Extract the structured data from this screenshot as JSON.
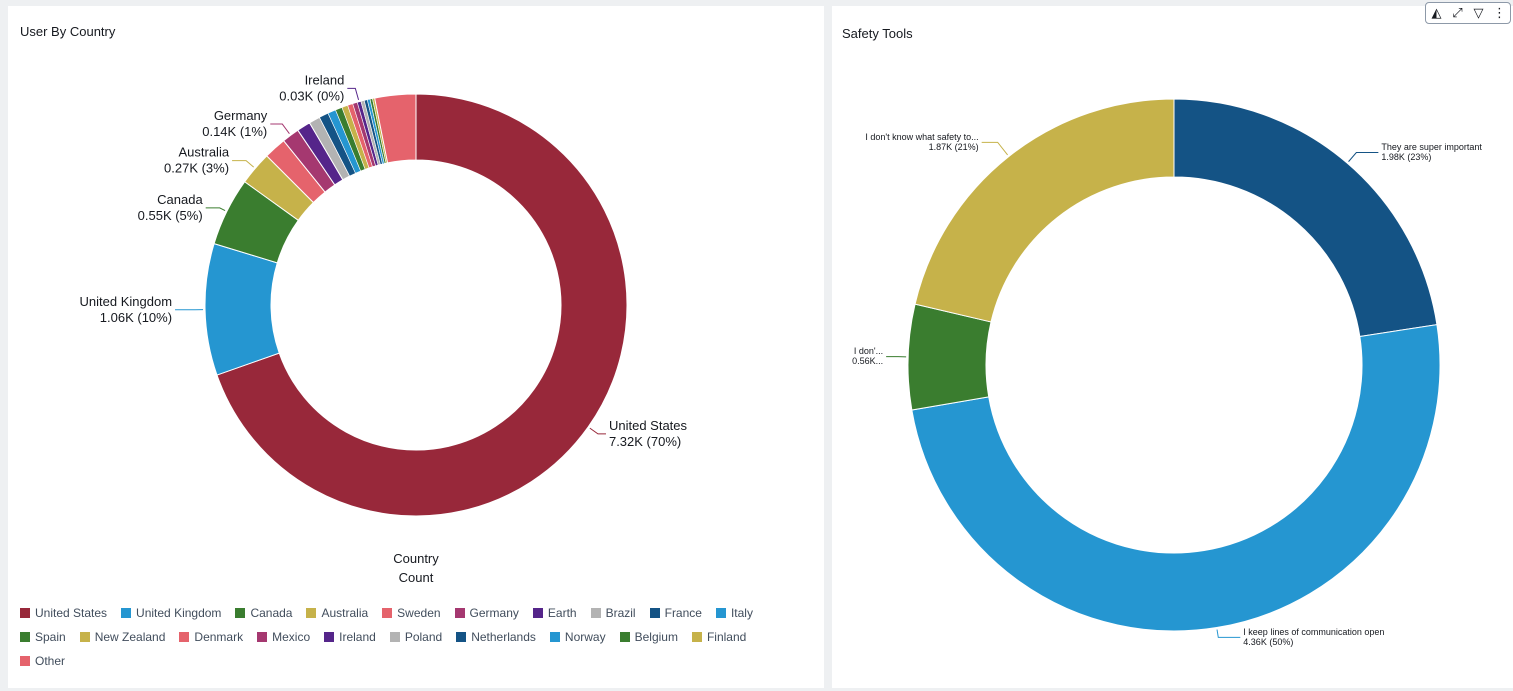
{
  "left_panel": {
    "title": "User By Country"
  },
  "right_panel": {
    "title": "Safety Tools",
    "toolbar": [
      {
        "icon": "chart-insights-icon",
        "glyph": "◭"
      },
      {
        "icon": "expand-icon",
        "glyph": "⤢"
      },
      {
        "icon": "filter-icon",
        "glyph": "▽"
      },
      {
        "icon": "more-options-icon",
        "glyph": "⋮"
      }
    ]
  },
  "chart_data": [
    {
      "type": "pie",
      "title": "User By Country",
      "donut": true,
      "field_labels": [
        "Country",
        "Count"
      ],
      "legend_position": "bottom",
      "slices": [
        {
          "name": "United States",
          "value": 7320,
          "color": "#98283a"
        },
        {
          "name": "United Kingdom",
          "value": 1060,
          "color": "#2596d1"
        },
        {
          "name": "Canada",
          "value": 550,
          "color": "#3a7d2f"
        },
        {
          "name": "Australia",
          "value": 270,
          "color": "#c6b24a"
        },
        {
          "name": "Sweden",
          "value": 180,
          "color": "#e5636c"
        },
        {
          "name": "Germany",
          "value": 140,
          "color": "#a53870"
        },
        {
          "name": "Earth",
          "value": 110,
          "color": "#55258a"
        },
        {
          "name": "Brazil",
          "value": 90,
          "color": "#b3b3b3"
        },
        {
          "name": "France",
          "value": 75,
          "color": "#145385"
        },
        {
          "name": "Italy",
          "value": 65,
          "color": "#2596d1"
        },
        {
          "name": "Spain",
          "value": 55,
          "color": "#3a7d2f"
        },
        {
          "name": "New Zealand",
          "value": 48,
          "color": "#c6b24a"
        },
        {
          "name": "Denmark",
          "value": 42,
          "color": "#e5636c"
        },
        {
          "name": "Mexico",
          "value": 38,
          "color": "#a53870"
        },
        {
          "name": "Ireland",
          "value": 30,
          "color": "#55258a"
        },
        {
          "name": "Poland",
          "value": 27,
          "color": "#b3b3b3"
        },
        {
          "name": "Netherlands",
          "value": 25,
          "color": "#145385"
        },
        {
          "name": "Norway",
          "value": 22,
          "color": "#2596d1"
        },
        {
          "name": "Belgium",
          "value": 20,
          "color": "#3a7d2f"
        },
        {
          "name": "Finland",
          "value": 18,
          "color": "#c6b24a"
        },
        {
          "name": "Other",
          "value": 330,
          "color": "#e5636c"
        }
      ],
      "data_labels": [
        {
          "slice": "United States",
          "name": "United States",
          "value": "7.32K (70%)"
        },
        {
          "slice": "United Kingdom",
          "name": "United Kingdom",
          "value": "1.06K (10%)"
        },
        {
          "slice": "Canada",
          "name": "Canada",
          "value": "0.55K (5%)"
        },
        {
          "slice": "Australia",
          "name": "Australia",
          "value": "0.27K (3%)"
        },
        {
          "slice": "Germany",
          "name": "Germany",
          "value": "0.14K (1%)"
        },
        {
          "slice": "Ireland",
          "name": "Ireland",
          "value": "0.03K (0%)"
        }
      ]
    },
    {
      "type": "pie",
      "title": "Safety Tools",
      "donut": true,
      "slices": [
        {
          "name": "They are super important",
          "value": 1980,
          "color": "#145385"
        },
        {
          "name": "I keep lines of communication open",
          "value": 4360,
          "color": "#2596d1"
        },
        {
          "name": "I don't use them",
          "value": 560,
          "color": "#3a7d2f"
        },
        {
          "name": "I don't know what safety tools are",
          "value": 1870,
          "color": "#c6b24a"
        }
      ],
      "data_labels": [
        {
          "slice": "They are super important",
          "name": "They are super important",
          "value": "1.98K (23%)"
        },
        {
          "slice": "I keep lines of communication open",
          "name": "I keep lines of communication open",
          "value": "4.36K (50%)"
        },
        {
          "slice": "I don't use them",
          "name": "I don'...",
          "value": "0.56K..."
        },
        {
          "slice": "I don't know what safety tools are",
          "name": "I don't know what safety to...",
          "value": "1.87K (21%)"
        }
      ]
    }
  ]
}
